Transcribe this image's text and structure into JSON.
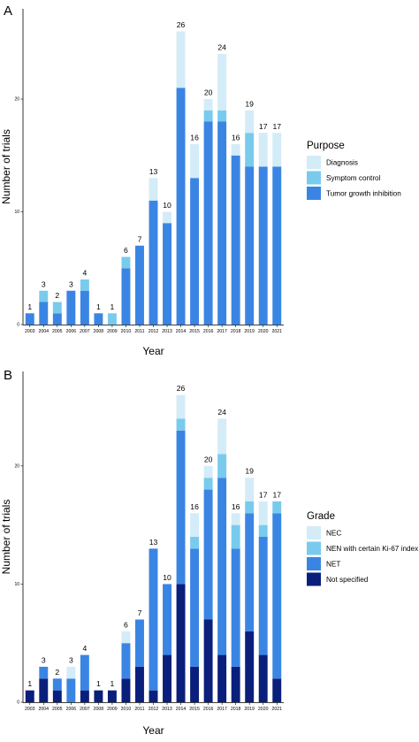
{
  "chart_data": [
    {
      "type": "bar",
      "stacked": true,
      "panel_label": "A",
      "xlabel": "Year",
      "ylabel": "Number of trials",
      "ylim": [
        0,
        28
      ],
      "yticks": [
        "0",
        "10",
        "20"
      ],
      "grid": false,
      "legend": {
        "title": "Purpose",
        "position": "right"
      },
      "categories": [
        "2003",
        "2004",
        "2005",
        "2006",
        "2007",
        "2008",
        "2009",
        "2010",
        "2011",
        "2012",
        "2013",
        "2014",
        "2015",
        "2016",
        "2017",
        "2018",
        "2019",
        "2020",
        "2021"
      ],
      "totals": [
        "1",
        "3",
        "2",
        "3",
        "4",
        "1",
        "1",
        "6",
        "7",
        "13",
        "10",
        "26",
        "16",
        "20",
        "24",
        "16",
        "19",
        "17",
        "17"
      ],
      "series": [
        {
          "name": "Tumor growth inhibition",
          "color": "#3a85e3",
          "values": [
            1,
            2,
            1,
            3,
            3,
            1,
            0,
            5,
            7,
            11,
            9,
            21,
            13,
            18,
            18,
            15,
            14,
            14,
            14
          ]
        },
        {
          "name": "Symptom control",
          "color": "#79cbee",
          "values": [
            0,
            1,
            1,
            0,
            1,
            0,
            1,
            1,
            0,
            0,
            0,
            0,
            0,
            1,
            1,
            0,
            3,
            0,
            0
          ]
        },
        {
          "name": "Diagnosis",
          "color": "#d3ecf8",
          "values": [
            0,
            0,
            0,
            0,
            0,
            0,
            0,
            0,
            0,
            2,
            1,
            5,
            3,
            1,
            5,
            1,
            2,
            3,
            3
          ]
        }
      ],
      "legend_order": [
        "Diagnosis",
        "Symptom control",
        "Tumor growth inhibition"
      ]
    },
    {
      "type": "bar",
      "stacked": true,
      "panel_label": "B",
      "xlabel": "Year",
      "ylabel": "Number of trials",
      "ylim": [
        0,
        28
      ],
      "yticks": [
        "0",
        "10",
        "20"
      ],
      "grid": false,
      "legend": {
        "title": "Grade",
        "position": "right"
      },
      "categories": [
        "2003",
        "2004",
        "2005",
        "2006",
        "2007",
        "2008",
        "2009",
        "2010",
        "2011",
        "2012",
        "2013",
        "2014",
        "2015",
        "2016",
        "2017",
        "2018",
        "2019",
        "2020",
        "2021"
      ],
      "totals": [
        "1",
        "3",
        "2",
        "3",
        "4",
        "1",
        "1",
        "6",
        "7",
        "13",
        "10",
        "26",
        "16",
        "20",
        "24",
        "16",
        "19",
        "17",
        "17"
      ],
      "series": [
        {
          "name": "Not specified",
          "color": "#0a1f7c",
          "values": [
            1,
            2,
            1,
            0,
            1,
            1,
            1,
            2,
            3,
            1,
            4,
            10,
            3,
            7,
            4,
            3,
            6,
            4,
            2
          ]
        },
        {
          "name": "NET",
          "color": "#3a85e3",
          "values": [
            0,
            1,
            1,
            2,
            3,
            0,
            0,
            3,
            4,
            12,
            6,
            13,
            10,
            11,
            15,
            10,
            10,
            10,
            14
          ]
        },
        {
          "name": "NEN with certain Ki-67 index",
          "color": "#79cbee",
          "values": [
            0,
            0,
            0,
            0,
            0,
            0,
            0,
            0,
            0,
            0,
            0,
            1,
            1,
            1,
            2,
            2,
            1,
            1,
            1
          ]
        },
        {
          "name": "NEC",
          "color": "#d3ecf8",
          "values": [
            0,
            0,
            0,
            1,
            0,
            0,
            0,
            1,
            0,
            0,
            0,
            2,
            2,
            1,
            3,
            1,
            2,
            2,
            0
          ]
        }
      ],
      "legend_order": [
        "NEC",
        "NEN with certain Ki-67 index",
        "NET",
        "Not specified"
      ]
    }
  ]
}
